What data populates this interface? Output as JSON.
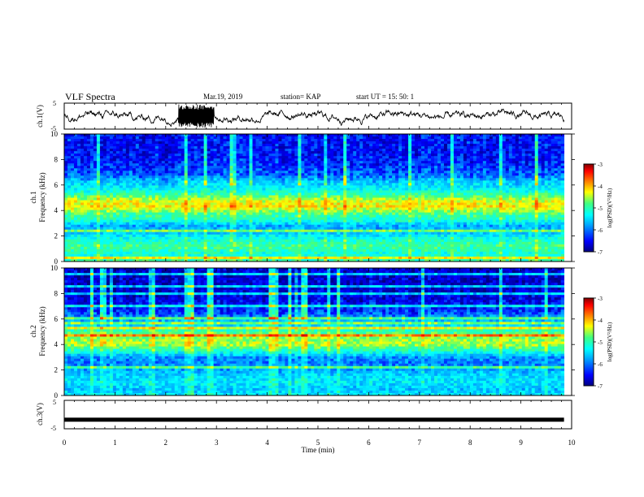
{
  "header": {
    "title": "VLF Spectra",
    "date": "Mar.19, 2019",
    "station": "station= KAP",
    "start": "start  UT =   15: 50: 1"
  },
  "chart_data": [
    {
      "type": "line",
      "panel": "ch1-waveform",
      "ylabel": "ch.1(V)",
      "ylim": [
        -5,
        5
      ],
      "yticks": [
        "5",
        "-5"
      ],
      "xlim": [
        0,
        10
      ],
      "line_color": "#000000",
      "burst_intervals_min": [
        [
          2.25,
          2.95
        ]
      ],
      "note_values": "waveform amplitude mostly between -2 and 2 V, burst reaching about +/-4.5 V"
    },
    {
      "type": "heatmap",
      "panel": "ch1-spectrogram",
      "ylabel": "ch.1\nFrequency (kHz)",
      "ylabel_lines": [
        "ch.1",
        "Frequency (kHz)"
      ],
      "ylim": [
        0,
        10
      ],
      "yticks": [
        "0",
        "2",
        "4",
        "6",
        "8",
        "10"
      ],
      "xlim": [
        0,
        10
      ],
      "colorbar": {
        "label": "log(PSD)(V²/Hz)",
        "range": [
          -7,
          -3
        ],
        "ticks": [
          "-3",
          "-4",
          "-5",
          "-6",
          "-7"
        ]
      },
      "freq_profile_kHz": [
        [
          0.0,
          -5.0
        ],
        [
          0.3,
          -5.4
        ],
        [
          0.8,
          -5.3
        ],
        [
          1.2,
          -5.1
        ],
        [
          1.8,
          -5.4
        ],
        [
          2.3,
          -5.8
        ],
        [
          2.8,
          -5.9
        ],
        [
          3.3,
          -5.3
        ],
        [
          3.8,
          -5.0
        ],
        [
          4.3,
          -4.4
        ],
        [
          4.8,
          -4.6
        ],
        [
          5.3,
          -5.2
        ],
        [
          5.8,
          -5.6
        ],
        [
          6.3,
          -5.8
        ],
        [
          6.8,
          -6.2
        ],
        [
          7.5,
          -6.4
        ],
        [
          8.5,
          -6.5
        ],
        [
          9.5,
          -6.5
        ],
        [
          10.0,
          -6.5
        ]
      ]
    },
    {
      "type": "heatmap",
      "panel": "ch2-spectrogram",
      "ylabel_lines": [
        "ch.2",
        "Frequency (kHz)"
      ],
      "ylim": [
        0,
        10
      ],
      "yticks": [
        "0",
        "2",
        "4",
        "6",
        "8",
        "10"
      ],
      "xlim": [
        0,
        10
      ],
      "colorbar": {
        "label": "log(PSD)(V²/Hz)",
        "range": [
          -7,
          -3
        ],
        "ticks": [
          "-3",
          "-4",
          "-5",
          "-6",
          "-7"
        ]
      },
      "freq_profile_kHz": [
        [
          0.0,
          -5.6
        ],
        [
          0.5,
          -5.8
        ],
        [
          1.0,
          -5.6
        ],
        [
          1.5,
          -5.7
        ],
        [
          2.0,
          -5.9
        ],
        [
          2.5,
          -6.1
        ],
        [
          3.0,
          -6.0
        ],
        [
          3.5,
          -5.3
        ],
        [
          4.0,
          -4.7
        ],
        [
          4.5,
          -4.8
        ],
        [
          5.0,
          -5.1
        ],
        [
          5.5,
          -5.7
        ],
        [
          6.0,
          -5.9
        ],
        [
          6.5,
          -6.3
        ],
        [
          7.5,
          -6.6
        ],
        [
          8.5,
          -6.7
        ],
        [
          10.0,
          -6.7
        ]
      ]
    },
    {
      "type": "line",
      "panel": "ch3-waveform",
      "ylabel": "ch.3(V)",
      "ylim": [
        -5,
        5
      ],
      "yticks": [
        "5",
        "-5"
      ],
      "xlim": [
        0,
        10
      ],
      "constant_value": -1.8
    }
  ],
  "xaxis": {
    "label": "Time (min)",
    "ticks": [
      "0",
      "1",
      "2",
      "3",
      "4",
      "5",
      "6",
      "7",
      "8",
      "9",
      "10"
    ],
    "range": [
      0,
      9.85
    ]
  },
  "colors": {
    "colormap": [
      "#000080",
      "#0000ff",
      "#00a0ff",
      "#00ffff",
      "#40ff80",
      "#ffff00",
      "#ff8000",
      "#ff0000",
      "#800000"
    ]
  }
}
